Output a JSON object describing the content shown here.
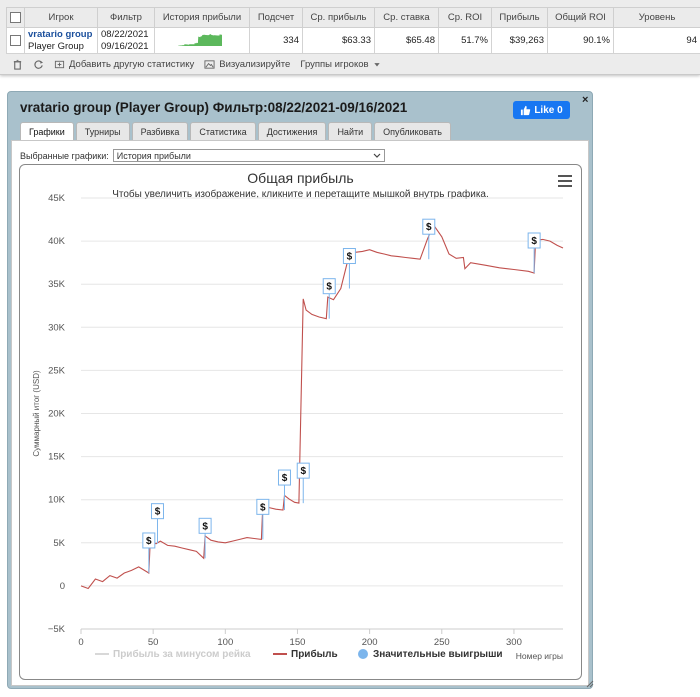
{
  "stats": {
    "headers": [
      "Игрок",
      "Фильтр",
      "История прибыли",
      "Подсчет",
      "Ср. прибыль",
      "Ср. ставка",
      "Ср. ROI",
      "Прибыль",
      "Общий ROI",
      "Уровень"
    ],
    "row": {
      "player_name": "vratario group",
      "player_type": "Player Group",
      "date_from": "08/22/2021",
      "date_to": "09/16/2021",
      "count": "334",
      "avg_profit": "$63.33",
      "avg_stake": "$65.48",
      "avg_roi": "51.7%",
      "profit": "$39,263",
      "total_roi": "90.1%",
      "level": "94"
    },
    "toolbar": {
      "add_stat": "Добавить другую статистику",
      "visualize": "Визуализируйте",
      "groups": "Группы игроков"
    },
    "sparkline_color": "#5cb85c"
  },
  "panel": {
    "title": "vratario group (Player Group) Фильтр:08/22/2021-09/16/2021",
    "like_label": "Like 0",
    "close_label": "×",
    "tabs": [
      "Графики",
      "Турниры",
      "Разбивка",
      "Статистика",
      "Достижения",
      "Найти",
      "Опубликовать"
    ],
    "active_tab": "Графики",
    "selector_label": "Выбранные графики:",
    "selector_value": "История прибыли",
    "accent_color": "#1877f2"
  },
  "chart_data": {
    "type": "line",
    "title": "Общая прибыль",
    "subtitle": "Чтобы увеличить изображение, кликните и перетащите мышкой внутрь графика.",
    "xlabel": "Номер игры",
    "ylabel": "Суммарный итог (USD)",
    "xlim": [
      0,
      334
    ],
    "ylim": [
      -5000,
      45000
    ],
    "x_ticks": [
      0,
      50,
      100,
      150,
      200,
      250,
      300
    ],
    "y_ticks": [
      -5000,
      0,
      5000,
      10000,
      15000,
      20000,
      25000,
      30000,
      35000,
      40000,
      45000
    ],
    "y_tick_labels": [
      "−5K",
      "0",
      "5K",
      "10K",
      "15K",
      "20K",
      "25K",
      "30K",
      "35K",
      "40K",
      "45K"
    ],
    "series": [
      {
        "name": "Прибыль",
        "color": "#c0504d",
        "x": [
          0,
          5,
          10,
          15,
          20,
          25,
          30,
          35,
          40,
          47,
          48,
          52,
          55,
          60,
          65,
          70,
          75,
          80,
          85,
          86,
          90,
          95,
          100,
          105,
          110,
          115,
          120,
          125,
          126,
          130,
          135,
          140,
          141,
          144,
          148,
          151,
          154,
          156,
          160,
          165,
          170,
          171,
          175,
          180,
          186,
          190,
          195,
          200,
          205,
          210,
          215,
          220,
          225,
          230,
          235,
          240,
          242,
          245,
          250,
          255,
          260,
          265,
          266,
          270,
          280,
          290,
          300,
          310,
          314,
          315,
          320,
          325,
          330,
          334
        ],
        "y": [
          0,
          -300,
          800,
          500,
          1200,
          900,
          1500,
          1800,
          2200,
          1500,
          5300,
          4900,
          5200,
          4700,
          4600,
          4400,
          4200,
          4000,
          3200,
          5800,
          5300,
          5100,
          5000,
          5200,
          5400,
          5600,
          5500,
          5400,
          9300,
          9100,
          8900,
          8800,
          10500,
          10100,
          9700,
          9600,
          33300,
          32000,
          31500,
          31200,
          31000,
          33500,
          33200,
          34500,
          38500,
          38700,
          38800,
          39000,
          38700,
          38500,
          38300,
          38200,
          38100,
          38000,
          37900,
          40200,
          41000,
          41700,
          40500,
          38500,
          38000,
          38100,
          36800,
          37500,
          37200,
          36900,
          36700,
          36500,
          36300,
          40100,
          40200,
          40000,
          39500,
          39200
        ]
      },
      {
        "name": "Прибыль за минусом рейка",
        "color": "#d8d8d8",
        "x": [],
        "y": []
      },
      {
        "name": "Значительные выигрыши",
        "color": "#7cb5ec",
        "x": [
          47,
          53,
          86,
          126,
          141,
          154,
          172,
          186,
          241,
          314
        ],
        "y": [
          1500,
          4900,
          3200,
          5400,
          8800,
          9600,
          31000,
          34500,
          37900,
          36300
        ]
      }
    ],
    "legend_position": "bottom",
    "grid": true
  }
}
